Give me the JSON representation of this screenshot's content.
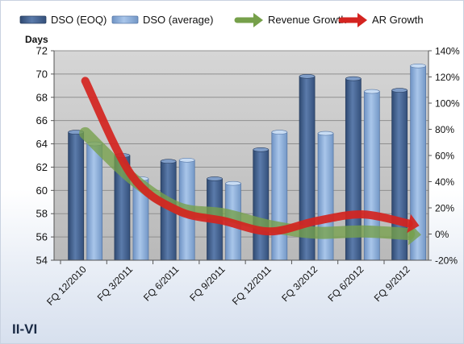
{
  "company": "II-VI",
  "chart_data": {
    "type": "bar",
    "categories": [
      "FQ 12/2010",
      "FQ 3/2011",
      "FQ 6/2011",
      "FQ 9/2011",
      "FQ 12/2011",
      "FQ 3/2012",
      "FQ 6/2012",
      "FQ 9/2012"
    ],
    "series": [
      {
        "name": "DSO (EOQ)",
        "type": "bar",
        "axis": "left",
        "color": "#4f6d9a",
        "values": [
          65.0,
          63.0,
          62.5,
          61.0,
          63.5,
          69.8,
          69.6,
          68.6
        ]
      },
      {
        "name": "DSO (average)",
        "type": "bar",
        "axis": "left",
        "color": "#8fb1dd",
        "values": [
          64.0,
          61.0,
          62.6,
          60.6,
          65.0,
          64.9,
          68.5,
          70.7
        ]
      },
      {
        "name": "Revenue Growth",
        "type": "line",
        "axis": "right",
        "color": "#76a04a",
        "values": [
          0.77,
          0.43,
          0.2,
          0.15,
          0.06,
          0.01,
          0.02,
          0.0
        ]
      },
      {
        "name": "AR Growth",
        "type": "line",
        "axis": "right",
        "color": "#d42420",
        "values": [
          1.17,
          0.45,
          0.18,
          0.1,
          0.02,
          0.1,
          0.15,
          0.08
        ]
      }
    ],
    "ylabel": "Days",
    "ylim": [
      54,
      72
    ],
    "yticks": [
      "54",
      "56",
      "58",
      "60",
      "62",
      "64",
      "66",
      "68",
      "70",
      "72"
    ],
    "y2lim": [
      -0.2,
      1.4
    ],
    "y2ticks": [
      "-20%",
      "0%",
      "20%",
      "40%",
      "60%",
      "80%",
      "100%",
      "120%",
      "140%"
    ],
    "legend_position": "top",
    "grid": true,
    "colors": {
      "plot_bg": "#c4c4c4",
      "gridline": "#8f8f8f",
      "axis": "#555555"
    }
  }
}
